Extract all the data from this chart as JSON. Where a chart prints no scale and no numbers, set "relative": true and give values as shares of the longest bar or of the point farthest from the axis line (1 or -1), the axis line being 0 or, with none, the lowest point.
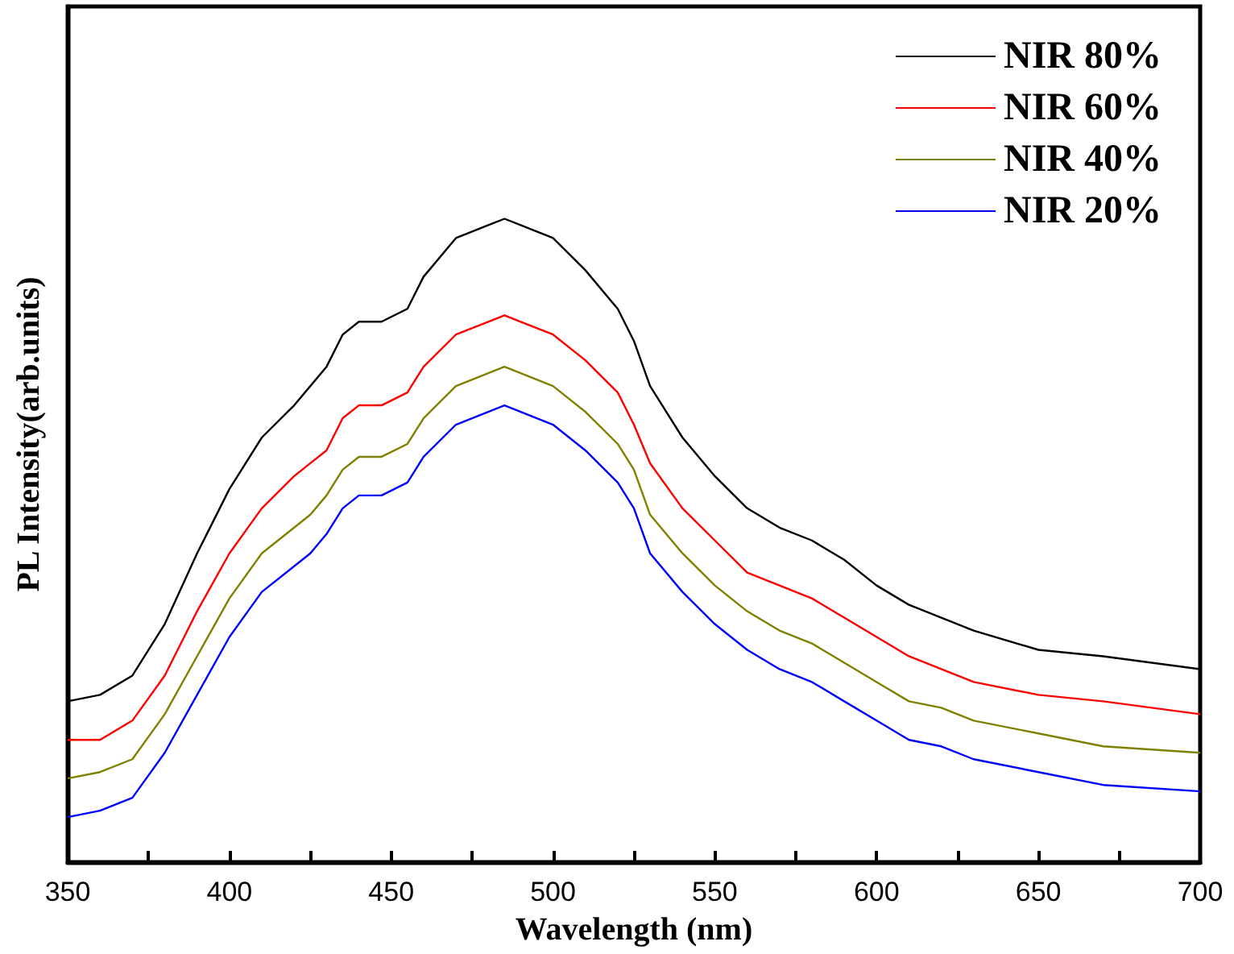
{
  "chart_data": {
    "type": "line",
    "relative": true,
    "xlabel": "Wavelength (nm)",
    "ylabel": "PL Intensity(arb.units)",
    "x": [
      350,
      360,
      370,
      380,
      390,
      400,
      410,
      420,
      425,
      430,
      435,
      440,
      447,
      455,
      460,
      470,
      480,
      485,
      490,
      500,
      510,
      520,
      525,
      530,
      540,
      550,
      560,
      570,
      580,
      590,
      600,
      610,
      620,
      630,
      650,
      670,
      700
    ],
    "xlim": [
      350,
      700
    ],
    "xticks": [
      350,
      {
        "value": 375,
        "label": null
      },
      400,
      {
        "value": 425,
        "label": null
      },
      450,
      {
        "value": 475,
        "label": null
      },
      500,
      {
        "value": 525,
        "label": null
      },
      550,
      {
        "value": 575,
        "label": null
      },
      600,
      {
        "value": 625,
        "label": null
      },
      650,
      {
        "value": 675,
        "label": null
      },
      700
    ],
    "grid": false,
    "legend": "top right",
    "marker": "none",
    "line_style": "solid",
    "series": [
      {
        "name": "NIR 80%",
        "color": "#000000",
        "values": [
          0.25,
          0.26,
          0.29,
          0.37,
          0.48,
          0.58,
          0.66,
          0.71,
          0.74,
          0.77,
          0.82,
          0.84,
          0.84,
          0.86,
          0.91,
          0.97,
          0.99,
          1.0,
          0.99,
          0.97,
          0.92,
          0.86,
          0.81,
          0.74,
          0.66,
          0.6,
          0.55,
          0.52,
          0.5,
          0.47,
          0.43,
          0.4,
          0.38,
          0.36,
          0.33,
          0.32,
          0.3
        ]
      },
      {
        "name": "NIR 60%",
        "color": "#ff0000",
        "values": [
          0.19,
          0.19,
          0.22,
          0.29,
          0.39,
          0.48,
          0.55,
          0.6,
          0.62,
          0.64,
          0.69,
          0.71,
          0.71,
          0.73,
          0.77,
          0.82,
          0.84,
          0.85,
          0.84,
          0.82,
          0.78,
          0.73,
          0.68,
          0.62,
          0.55,
          0.5,
          0.45,
          0.43,
          0.41,
          0.38,
          0.35,
          0.32,
          0.3,
          0.28,
          0.26,
          0.25,
          0.23
        ]
      },
      {
        "name": "NIR 40%",
        "color": "#808000",
        "values": [
          0.13,
          0.14,
          0.16,
          0.23,
          0.32,
          0.41,
          0.48,
          0.52,
          0.54,
          0.57,
          0.61,
          0.63,
          0.63,
          0.65,
          0.69,
          0.74,
          0.76,
          0.77,
          0.76,
          0.74,
          0.7,
          0.65,
          0.61,
          0.54,
          0.48,
          0.43,
          0.39,
          0.36,
          0.34,
          0.31,
          0.28,
          0.25,
          0.24,
          0.22,
          0.2,
          0.18,
          0.17
        ]
      },
      {
        "name": "NIR 20%",
        "color": "#0000ff",
        "values": [
          0.07,
          0.08,
          0.1,
          0.17,
          0.26,
          0.35,
          0.42,
          0.46,
          0.48,
          0.51,
          0.55,
          0.57,
          0.57,
          0.59,
          0.63,
          0.68,
          0.7,
          0.71,
          0.7,
          0.68,
          0.64,
          0.59,
          0.55,
          0.48,
          0.42,
          0.37,
          0.33,
          0.3,
          0.28,
          0.25,
          0.22,
          0.19,
          0.18,
          0.16,
          0.14,
          0.12,
          0.11
        ]
      }
    ]
  }
}
